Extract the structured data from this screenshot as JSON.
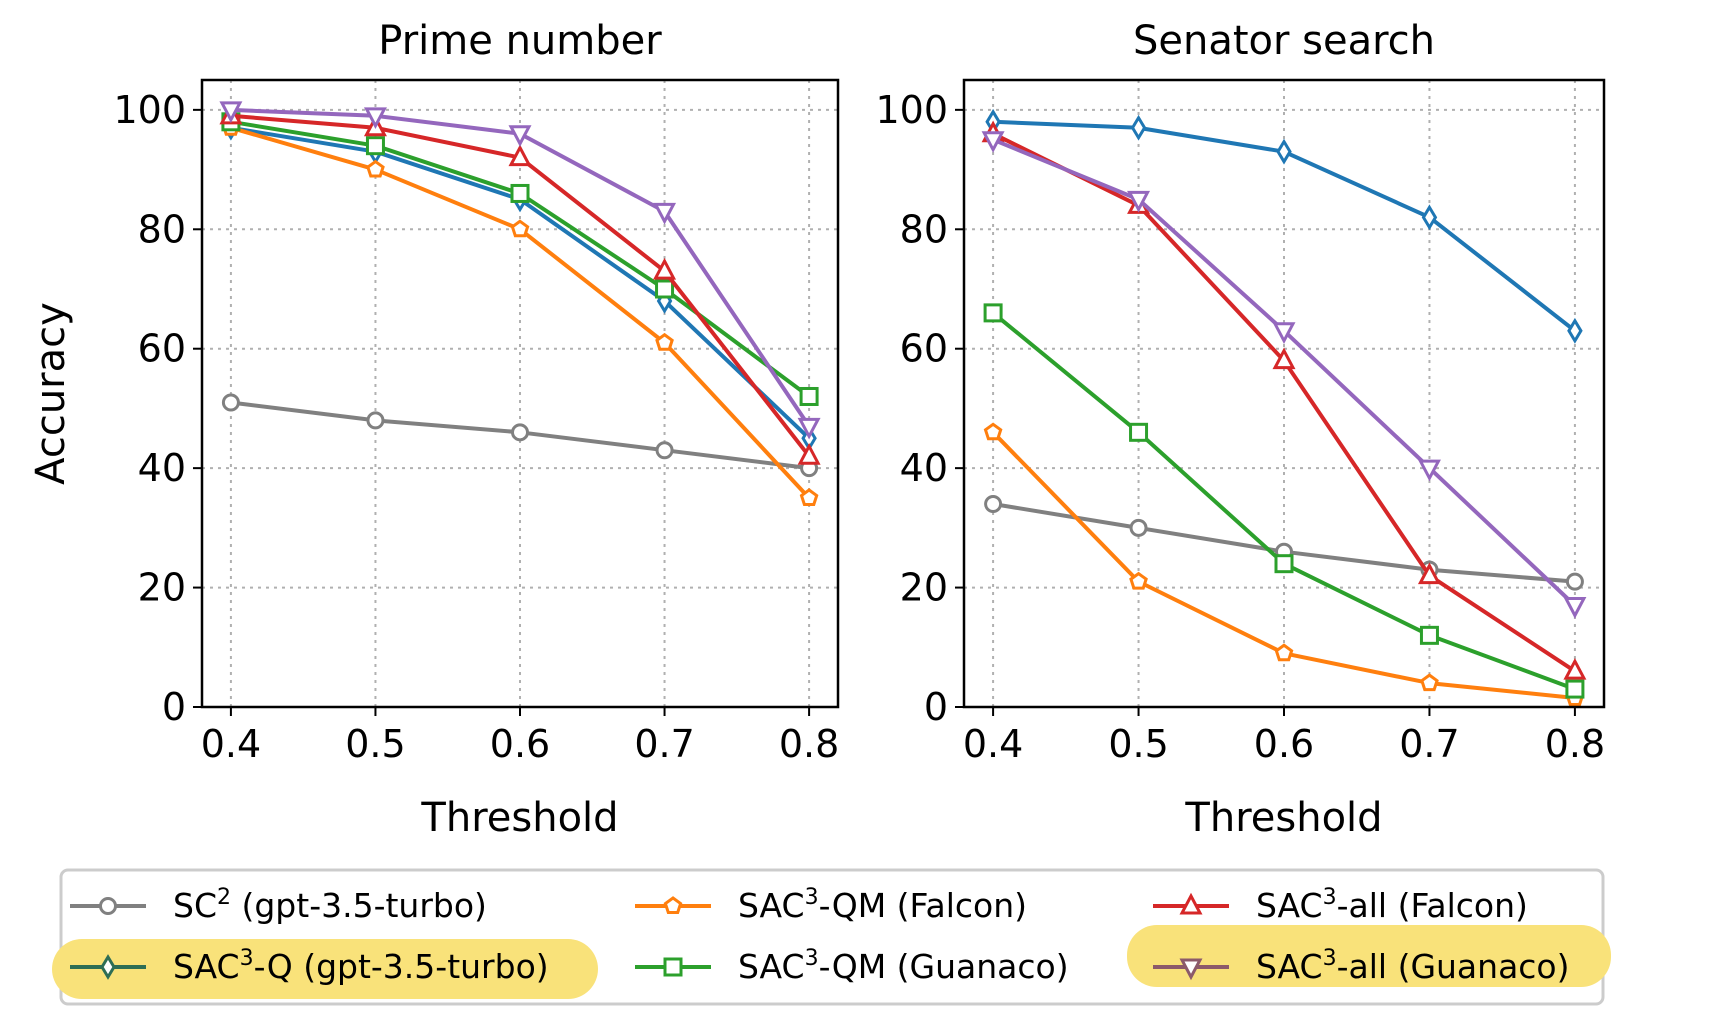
{
  "colors": {
    "sc2": "#808080",
    "q": "#1f77b4",
    "qm_falcon": "#ff7f0e",
    "qm_guanaco": "#2ca02c",
    "all_falcon": "#d62728",
    "all_guanaco": "#9467bd",
    "highlight": "#f9e27a",
    "legend_q_line": "#2e6e55",
    "legend_guanaco_line": "#8c5a6a"
  },
  "chart_data": [
    {
      "type": "line",
      "title": "Prime number",
      "xlabel": "Threshold",
      "ylabel": "Accuracy",
      "x": [
        0.4,
        0.5,
        0.6,
        0.7,
        0.8
      ],
      "x_tick_labels": [
        "0.4",
        "0.5",
        "0.6",
        "0.7",
        "0.8"
      ],
      "xlim": [
        0.38,
        0.82
      ],
      "ylim": [
        0,
        105
      ],
      "y_ticks": [
        0,
        20,
        40,
        60,
        80,
        100
      ],
      "y_tick_labels": [
        "0",
        "20",
        "40",
        "60",
        "80",
        "100"
      ],
      "grid": true,
      "series": [
        {
          "key": "sc2",
          "name": "SC² (gpt-3.5-turbo)",
          "marker": "circle",
          "values": [
            51,
            48,
            46,
            43,
            40
          ]
        },
        {
          "key": "q",
          "name": "SAC³-Q (gpt-3.5-turbo)",
          "marker": "thin-diamond",
          "values": [
            97,
            93,
            85,
            68,
            45
          ]
        },
        {
          "key": "qm_falcon",
          "name": "SAC³-QM (Falcon)",
          "marker": "pentagon",
          "values": [
            97,
            90,
            80,
            61,
            35
          ]
        },
        {
          "key": "qm_guanaco",
          "name": "SAC³-QM (Guanaco)",
          "marker": "square",
          "values": [
            98,
            94,
            86,
            70,
            52
          ]
        },
        {
          "key": "all_falcon",
          "name": "SAC³-all (Falcon)",
          "marker": "triangle-up",
          "values": [
            99,
            97,
            92,
            73,
            42
          ]
        },
        {
          "key": "all_guanaco",
          "name": "SAC³-all (Guanaco)",
          "marker": "triangle-down",
          "values": [
            100,
            99,
            96,
            83,
            47
          ]
        }
      ]
    },
    {
      "type": "line",
      "title": "Senator search",
      "xlabel": "Threshold",
      "ylabel": "",
      "x": [
        0.4,
        0.5,
        0.6,
        0.7,
        0.8
      ],
      "x_tick_labels": [
        "0.4",
        "0.5",
        "0.6",
        "0.7",
        "0.8"
      ],
      "xlim": [
        0.38,
        0.82
      ],
      "ylim": [
        0,
        105
      ],
      "y_ticks": [
        0,
        20,
        40,
        60,
        80,
        100
      ],
      "y_tick_labels": [
        "0",
        "20",
        "40",
        "60",
        "80",
        "100"
      ],
      "grid": true,
      "series": [
        {
          "key": "sc2",
          "name": "SC² (gpt-3.5-turbo)",
          "marker": "circle",
          "values": [
            34,
            30,
            26,
            23,
            21
          ]
        },
        {
          "key": "q",
          "name": "SAC³-Q (gpt-3.5-turbo)",
          "marker": "thin-diamond",
          "values": [
            98,
            97,
            93,
            82,
            63
          ]
        },
        {
          "key": "qm_falcon",
          "name": "SAC³-QM (Falcon)",
          "marker": "pentagon",
          "values": [
            46,
            21,
            9,
            4,
            1.5
          ]
        },
        {
          "key": "qm_guanaco",
          "name": "SAC³-QM (Guanaco)",
          "marker": "square",
          "values": [
            66,
            46,
            24,
            12,
            3
          ]
        },
        {
          "key": "all_falcon",
          "name": "SAC³-all (Falcon)",
          "marker": "triangle-up",
          "values": [
            96,
            84,
            58,
            22,
            6
          ]
        },
        {
          "key": "all_guanaco",
          "name": "SAC³-all (Guanaco)",
          "marker": "triangle-down",
          "values": [
            95,
            85,
            63,
            40,
            17
          ]
        }
      ]
    }
  ],
  "legend": {
    "placement": "bottom",
    "entries": [
      {
        "key": "sc2",
        "prefix": "SC",
        "sup": "2",
        "suffix": " (gpt-3.5-turbo)",
        "highlighted": false,
        "line_color_key": "sc2"
      },
      {
        "key": "qm_falcon",
        "prefix": "SAC",
        "sup": "3",
        "suffix": "-QM (Falcon)",
        "highlighted": false,
        "line_color_key": "qm_falcon"
      },
      {
        "key": "all_falcon",
        "prefix": "SAC",
        "sup": "3",
        "suffix": "-all (Falcon)",
        "highlighted": false,
        "line_color_key": "all_falcon"
      },
      {
        "key": "q",
        "prefix": "SAC",
        "sup": "3",
        "suffix": "-Q (gpt-3.5-turbo)",
        "highlighted": true,
        "line_color_key": "legend_q_line"
      },
      {
        "key": "qm_guanaco",
        "prefix": "SAC",
        "sup": "3",
        "suffix": "-QM (Guanaco)",
        "highlighted": false,
        "line_color_key": "qm_guanaco"
      },
      {
        "key": "all_guanaco",
        "prefix": "SAC",
        "sup": "3",
        "suffix": "-all (Guanaco)",
        "highlighted": true,
        "line_color_key": "legend_guanaco_line"
      }
    ]
  }
}
